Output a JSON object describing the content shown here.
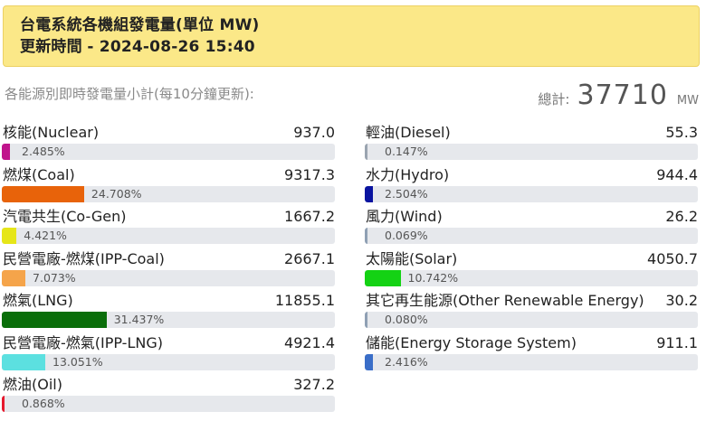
{
  "header": {
    "title": "台電系統各機組發電量(單位 MW)",
    "updated_label": "更新時間",
    "updated_time": "- 2024-08-26 15:40"
  },
  "subtitle": "各能源別即時發電量小計(每10分鐘更新):",
  "total": {
    "label": "總計:",
    "value": "37710",
    "unit": "MW"
  },
  "left_items": [
    {
      "name": "核能(Nuclear)",
      "value": "937.0",
      "percent_label": "2.485%",
      "percent": 2.485,
      "color": "#c0148c"
    },
    {
      "name": "燃煤(Coal)",
      "value": "9317.3",
      "percent_label": "24.708%",
      "percent": 24.708,
      "color": "#e8630a"
    },
    {
      "name": "汽電共生(Co-Gen)",
      "value": "1667.2",
      "percent_label": "4.421%",
      "percent": 4.421,
      "color": "#e6e619"
    },
    {
      "name": "民營電廠-燃煤(IPP-Coal)",
      "value": "2667.1",
      "percent_label": "7.073%",
      "percent": 7.073,
      "color": "#f5a44a"
    },
    {
      "name": "燃氣(LNG)",
      "value": "11855.1",
      "percent_label": "31.437%",
      "percent": 31.437,
      "color": "#0a6e0a"
    },
    {
      "name": "民營電廠-燃氣(IPP-LNG)",
      "value": "4921.4",
      "percent_label": "13.051%",
      "percent": 13.051,
      "color": "#5ce0e0"
    },
    {
      "name": "燃油(Oil)",
      "value": "327.2",
      "percent_label": "0.868%",
      "percent": 0.868,
      "color": "#e6192d"
    }
  ],
  "right_items": [
    {
      "name": "輕油(Diesel)",
      "value": "55.3",
      "percent_label": "0.147%",
      "percent": 0.147,
      "color": "#9aa4b0"
    },
    {
      "name": "水力(Hydro)",
      "value": "944.4",
      "percent_label": "2.504%",
      "percent": 2.504,
      "color": "#0a14a0"
    },
    {
      "name": "風力(Wind)",
      "value": "26.2",
      "percent_label": "0.069%",
      "percent": 0.069,
      "color": "#8fa0b4"
    },
    {
      "name": "太陽能(Solar)",
      "value": "4050.7",
      "percent_label": "10.742%",
      "percent": 10.742,
      "color": "#14d214"
    },
    {
      "name": "其它再生能源(Other Renewable Energy)",
      "value": "30.2",
      "percent_label": "0.080%",
      "percent": 0.08,
      "color": "#8fa0b4"
    },
    {
      "name": "儲能(Energy Storage System)",
      "value": "911.1",
      "percent_label": "2.416%",
      "percent": 2.416,
      "color": "#3a6ec8"
    }
  ]
}
